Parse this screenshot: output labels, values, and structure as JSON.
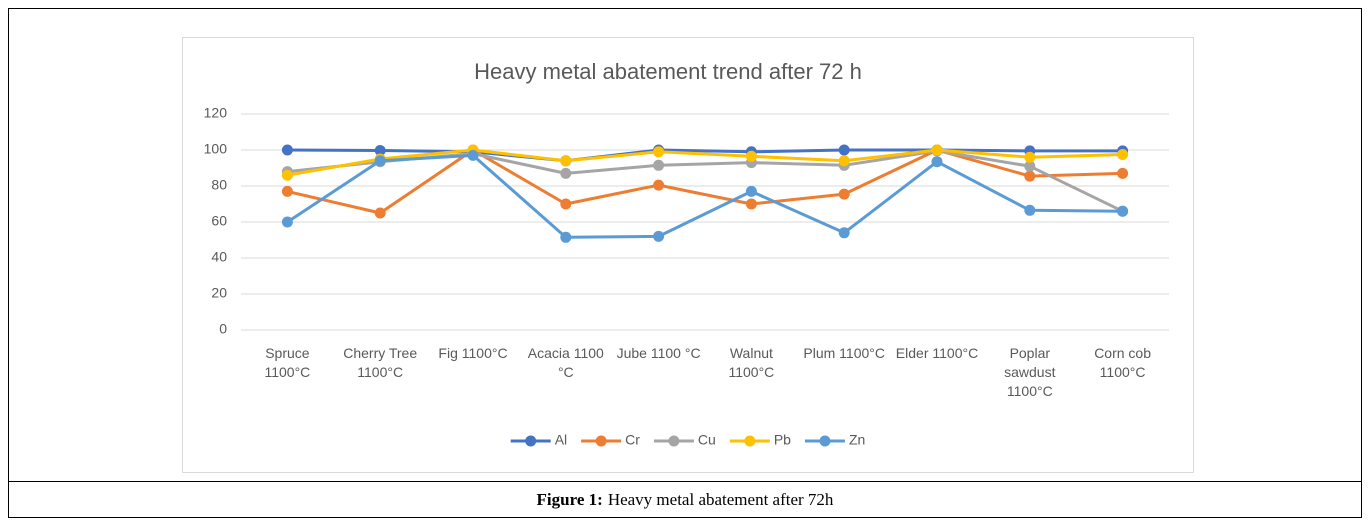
{
  "chart_data": {
    "type": "line",
    "title": "Heavy metal abatement trend after 72 h",
    "categories": [
      "Spruce 1100°C",
      "Cherry Tree 1100°C",
      "Fig 1100°C",
      "Acacia 1100 °C",
      "Jube 1100 °C",
      "Walnut 1100°C",
      "Plum 1100°C",
      "Elder 1100°C",
      "Poplar sawdust 1100°C",
      "Corn cob 1100°C"
    ],
    "series": [
      {
        "name": "Al",
        "color": "#4472c4",
        "values": [
          100,
          99.7,
          99,
          94,
          100,
          99,
          100,
          100,
          99.5,
          99.5
        ]
      },
      {
        "name": "Cr",
        "color": "#ed7d31",
        "values": [
          77,
          65,
          100,
          70,
          80.5,
          70,
          75.5,
          100,
          85.5,
          87
        ]
      },
      {
        "name": "Cu",
        "color": "#a5a5a5",
        "values": [
          88,
          93.5,
          98,
          87,
          91.5,
          93,
          91.5,
          99.5,
          91,
          66
        ]
      },
      {
        "name": "Pb",
        "color": "#ffc000",
        "values": [
          86,
          95,
          100,
          94,
          99,
          96.5,
          94,
          100,
          96,
          97.5
        ]
      },
      {
        "name": "Zn",
        "color": "#5b9bd5",
        "values": [
          60,
          94,
          97,
          51.5,
          52,
          77,
          54,
          93.5,
          66.5,
          66
        ]
      }
    ],
    "ylim": [
      0,
      120
    ],
    "yticks": [
      0,
      20,
      40,
      60,
      80,
      100,
      120
    ],
    "grid": true,
    "legend": "bottom"
  },
  "caption": {
    "label": "Figure 1:",
    "text": "Heavy metal abatement after 72h"
  }
}
